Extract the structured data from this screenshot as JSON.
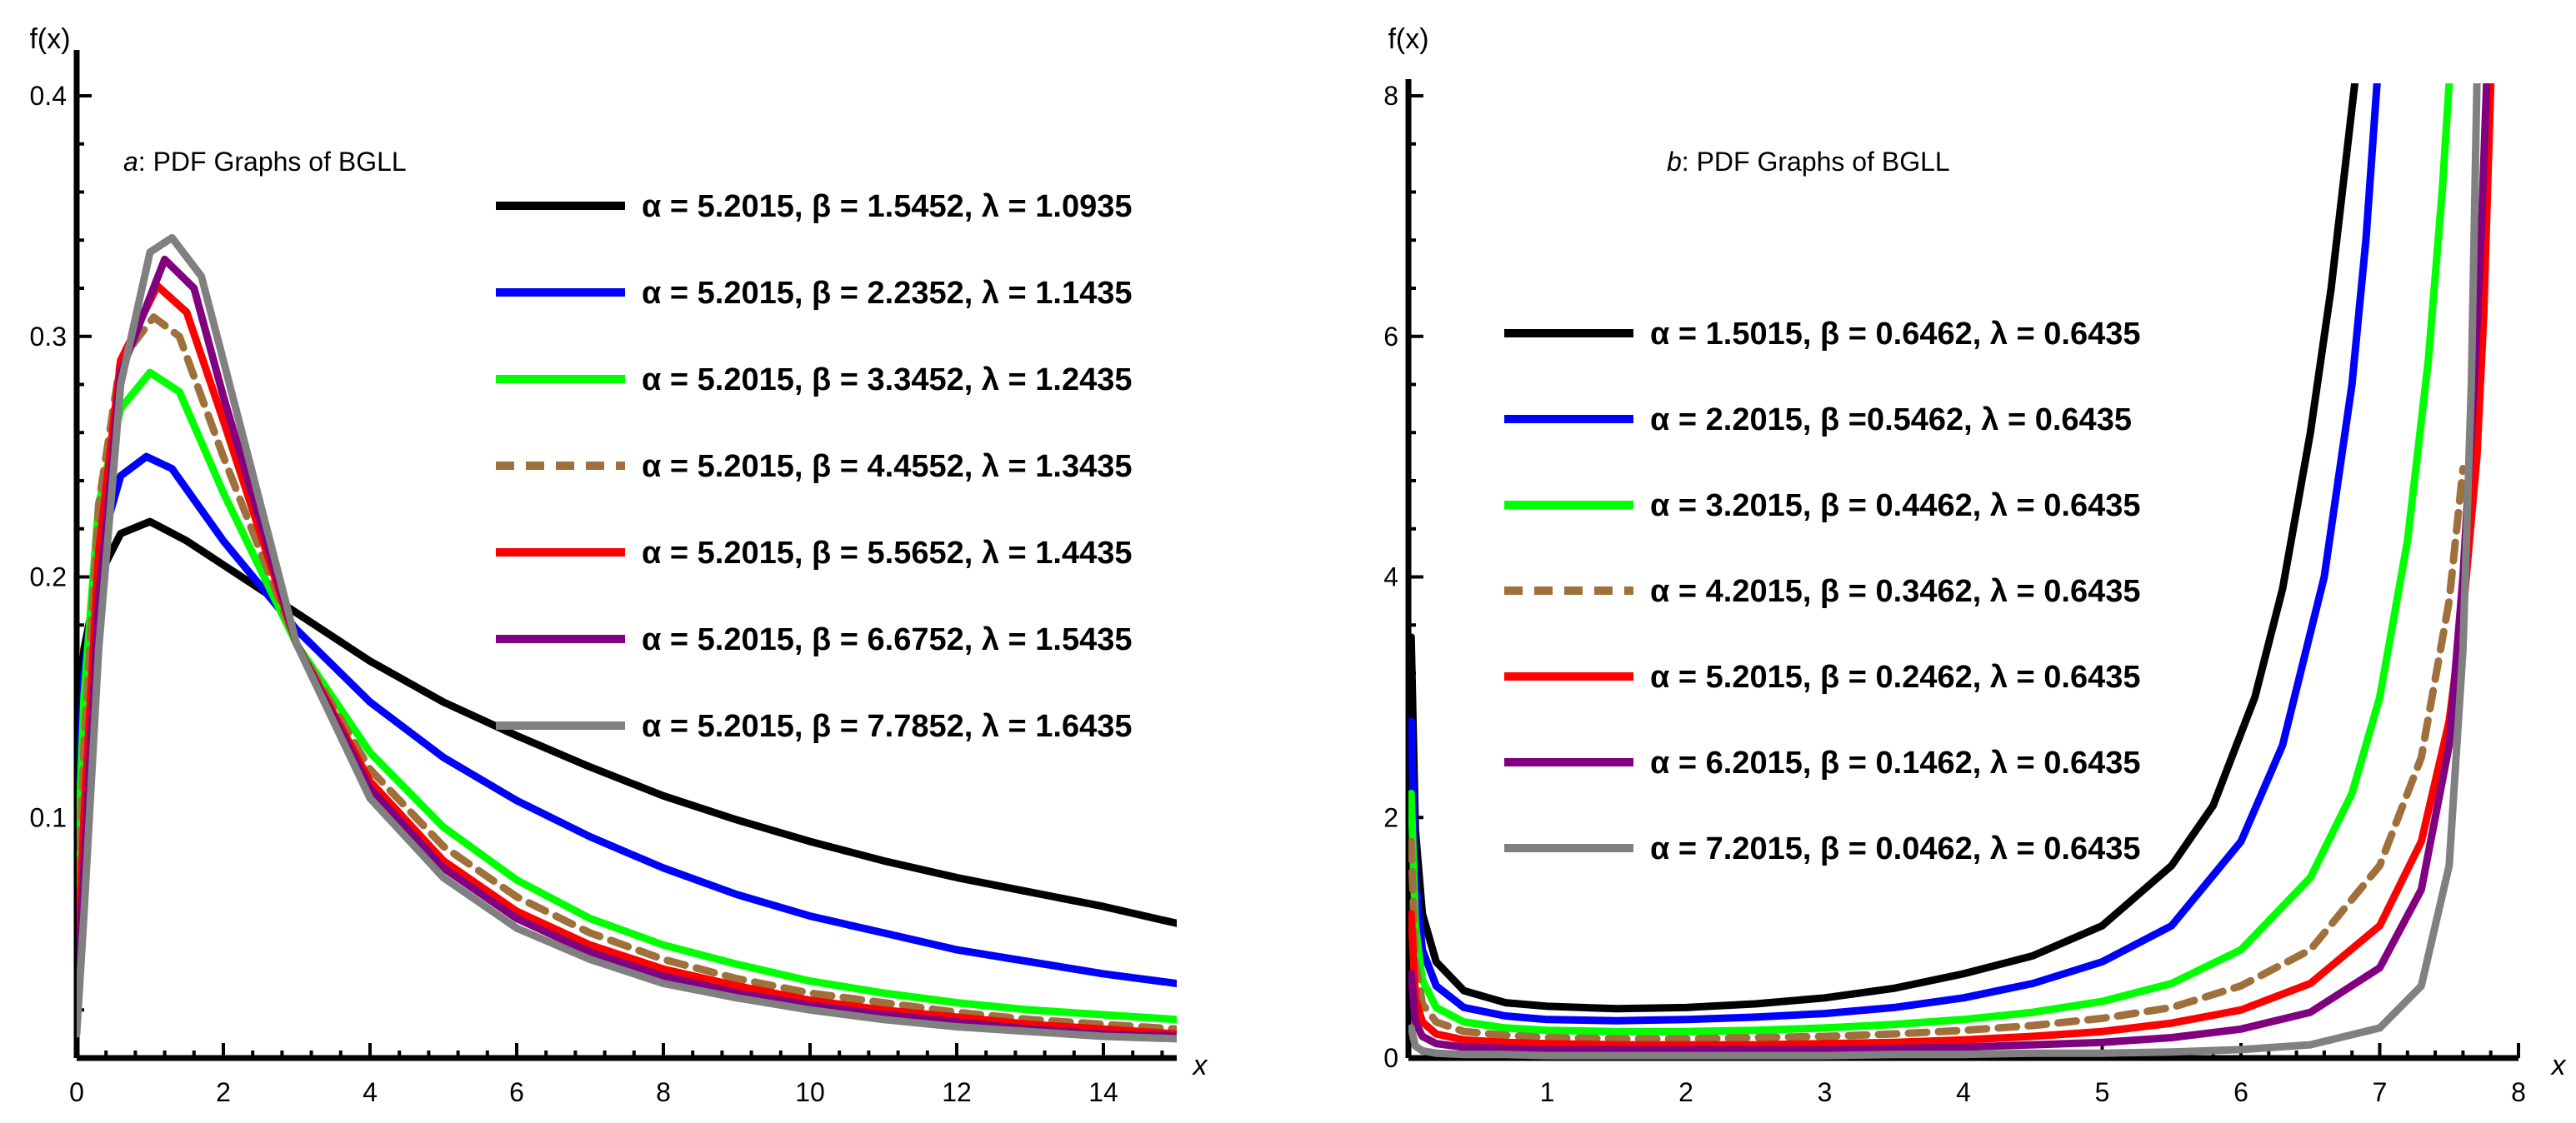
{
  "chart_data": [
    {
      "type": "line",
      "title_prefix": "a",
      "title_text": ": PDF Graphs of BGLL",
      "xlabel": "x",
      "ylabel": "f(x)",
      "xlim": [
        0,
        15
      ],
      "ylim": [
        0,
        0.4
      ],
      "x_ticks": [
        0,
        2,
        4,
        6,
        8,
        10,
        12,
        14
      ],
      "y_ticks": [
        0.1,
        0.2,
        0.3,
        0.4
      ],
      "y_tick_labels": [
        "0.1",
        "0.2",
        "0.3",
        "0.4"
      ],
      "legend_position": "top-right",
      "series": [
        {
          "name": "α = 5.2015, β = 1.5452, λ = 1.0935",
          "color": "#000000",
          "dash": "solid",
          "x": [
            0,
            0.1,
            0.3,
            0.6,
            1.0,
            1.5,
            2,
            3,
            4,
            5,
            6,
            7,
            8,
            9,
            10,
            11,
            12,
            13,
            14,
            15
          ],
          "y": [
            0.13,
            0.17,
            0.2,
            0.218,
            0.223,
            0.215,
            0.205,
            0.185,
            0.165,
            0.148,
            0.134,
            0.121,
            0.109,
            0.099,
            0.09,
            0.082,
            0.075,
            0.069,
            0.063,
            0.056
          ]
        },
        {
          "name": "α = 5.2015, β = 2.2352, λ = 1.1435",
          "color": "#0000ff",
          "dash": "solid",
          "x": [
            0,
            0.1,
            0.3,
            0.6,
            0.95,
            1.3,
            2,
            3,
            4,
            5,
            6,
            7,
            8,
            9,
            10,
            11,
            12,
            13,
            14,
            15
          ],
          "y": [
            0.1,
            0.16,
            0.21,
            0.242,
            0.25,
            0.245,
            0.215,
            0.178,
            0.148,
            0.125,
            0.107,
            0.092,
            0.079,
            0.068,
            0.059,
            0.052,
            0.045,
            0.04,
            0.035,
            0.031
          ]
        },
        {
          "name": "α = 5.2015, β = 3.3452, λ = 1.2435",
          "color": "#00ff00",
          "dash": "solid",
          "x": [
            0,
            0.1,
            0.3,
            0.6,
            1.0,
            1.4,
            2,
            3,
            4,
            5,
            6,
            7,
            8,
            9,
            10,
            11,
            12,
            13,
            14,
            15
          ],
          "y": [
            0.07,
            0.15,
            0.23,
            0.27,
            0.285,
            0.277,
            0.235,
            0.172,
            0.127,
            0.096,
            0.074,
            0.058,
            0.047,
            0.039,
            0.032,
            0.027,
            0.023,
            0.02,
            0.018,
            0.016
          ]
        },
        {
          "name": "α = 5.2015, β = 4.4552, λ = 1.3435",
          "color": "#a0703c",
          "dash": "dashed",
          "x": [
            0,
            0.1,
            0.3,
            0.6,
            1.05,
            1.4,
            2,
            3,
            4,
            5,
            6,
            7,
            8,
            9,
            10,
            11,
            12,
            13,
            14,
            15
          ],
          "y": [
            0.05,
            0.13,
            0.23,
            0.29,
            0.308,
            0.3,
            0.25,
            0.172,
            0.12,
            0.088,
            0.067,
            0.052,
            0.041,
            0.033,
            0.027,
            0.023,
            0.019,
            0.016,
            0.014,
            0.012
          ]
        },
        {
          "name": "α = 5.2015, β = 5.5652, λ = 1.4435",
          "color": "#ff0000",
          "dash": "solid",
          "x": [
            0,
            0.1,
            0.3,
            0.6,
            1.1,
            1.5,
            2,
            3,
            4,
            5,
            6,
            7,
            8,
            9,
            10,
            11,
            12,
            13,
            14,
            15
          ],
          "y": [
            0.03,
            0.1,
            0.21,
            0.29,
            0.321,
            0.31,
            0.265,
            0.172,
            0.115,
            0.082,
            0.061,
            0.047,
            0.037,
            0.03,
            0.024,
            0.02,
            0.017,
            0.014,
            0.012,
            0.01
          ]
        },
        {
          "name": "α = 5.2015, β = 6.6752, λ = 1.5435",
          "color": "#800080",
          "dash": "solid",
          "x": [
            0,
            0.1,
            0.3,
            0.6,
            1.2,
            1.6,
            2,
            3,
            4,
            5,
            6,
            7,
            8,
            9,
            10,
            11,
            12,
            13,
            14,
            15
          ],
          "y": [
            0.02,
            0.08,
            0.19,
            0.285,
            0.332,
            0.32,
            0.275,
            0.172,
            0.112,
            0.079,
            0.058,
            0.044,
            0.034,
            0.027,
            0.022,
            0.018,
            0.015,
            0.012,
            0.01,
            0.009
          ]
        },
        {
          "name": "α = 5.2015, β = 7.7852, λ = 1.6435",
          "color": "#808080",
          "dash": "solid",
          "x": [
            0,
            0.1,
            0.3,
            0.6,
            1.0,
            1.3,
            1.7,
            2,
            3,
            4,
            5,
            6,
            7,
            8,
            9,
            10,
            11,
            12,
            13,
            14,
            15
          ],
          "y": [
            0.01,
            0.06,
            0.17,
            0.28,
            0.335,
            0.341,
            0.325,
            0.29,
            0.172,
            0.108,
            0.075,
            0.054,
            0.041,
            0.031,
            0.025,
            0.02,
            0.016,
            0.013,
            0.011,
            0.009,
            0.008
          ]
        }
      ]
    },
    {
      "type": "line",
      "title_prefix": "b",
      "title_text": ": PDF Graphs of BGLL",
      "xlabel": "x",
      "ylabel": "f(x)",
      "xlim": [
        0,
        8
      ],
      "ylim": [
        0,
        8
      ],
      "x_ticks": [
        1,
        2,
        3,
        4,
        5,
        6,
        7,
        8
      ],
      "y_ticks": [
        0,
        2,
        4,
        6,
        8
      ],
      "y_tick_labels": [
        "0",
        "2",
        "4",
        "6",
        "8"
      ],
      "legend_position": "top-left",
      "series": [
        {
          "name": "α = 1.5015, β = 0.6462, λ = 0.6435",
          "color": "#000000",
          "dash": "solid",
          "x": [
            0.02,
            0.05,
            0.1,
            0.2,
            0.4,
            0.7,
            1,
            1.5,
            2,
            2.5,
            3,
            3.5,
            4,
            4.5,
            5,
            5.5,
            5.8,
            6.1,
            6.3,
            6.5,
            6.65,
            6.75,
            6.82
          ],
          "y": [
            3.5,
            1.9,
            1.2,
            0.8,
            0.56,
            0.46,
            0.43,
            0.41,
            0.42,
            0.45,
            0.5,
            0.58,
            0.7,
            0.85,
            1.1,
            1.6,
            2.1,
            3.0,
            3.9,
            5.2,
            6.4,
            7.4,
            8.1
          ]
        },
        {
          "name": "α = 2.2015, β =0.5462, λ = 0.6435",
          "color": "#0000ff",
          "dash": "solid",
          "x": [
            0.02,
            0.05,
            0.1,
            0.2,
            0.4,
            0.7,
            1,
            1.5,
            2,
            2.5,
            3,
            3.5,
            4,
            4.5,
            5,
            5.5,
            6,
            6.3,
            6.6,
            6.8,
            6.9,
            6.98
          ],
          "y": [
            2.8,
            1.5,
            0.9,
            0.6,
            0.42,
            0.35,
            0.32,
            0.31,
            0.32,
            0.34,
            0.37,
            0.42,
            0.5,
            0.62,
            0.8,
            1.1,
            1.8,
            2.6,
            4.0,
            5.6,
            6.8,
            8.1
          ]
        },
        {
          "name": "α = 3.2015, β = 0.4462, λ = 0.6435",
          "color": "#00ff00",
          "dash": "solid",
          "x": [
            0.02,
            0.05,
            0.1,
            0.2,
            0.4,
            0.7,
            1,
            1.5,
            2,
            2.5,
            3,
            3.5,
            4,
            4.5,
            5,
            5.5,
            6,
            6.5,
            6.8,
            7,
            7.2,
            7.35,
            7.45,
            7.5
          ],
          "y": [
            2.2,
            1.1,
            0.65,
            0.42,
            0.3,
            0.25,
            0.23,
            0.22,
            0.22,
            0.23,
            0.25,
            0.28,
            0.32,
            0.38,
            0.47,
            0.62,
            0.9,
            1.5,
            2.2,
            3.0,
            4.3,
            5.8,
            7.2,
            8.1
          ]
        },
        {
          "name": "α = 4.2015, β = 0.3462, λ = 0.6435",
          "color": "#a0703c",
          "dash": "dashed",
          "x": [
            0.02,
            0.05,
            0.1,
            0.2,
            0.4,
            0.7,
            1,
            1.5,
            2,
            2.5,
            3,
            3.5,
            4,
            4.5,
            5,
            5.5,
            6,
            6.5,
            7,
            7.3,
            7.5,
            7.6
          ],
          "y": [
            1.8,
            0.8,
            0.45,
            0.3,
            0.22,
            0.19,
            0.17,
            0.16,
            0.16,
            0.17,
            0.18,
            0.2,
            0.23,
            0.27,
            0.33,
            0.42,
            0.6,
            0.9,
            1.6,
            2.5,
            3.8,
            4.9
          ]
        },
        {
          "name": "α = 5.2015, β = 0.2462, λ = 0.6435",
          "color": "#ff0000",
          "dash": "solid",
          "x": [
            0.02,
            0.05,
            0.1,
            0.2,
            0.4,
            0.7,
            1,
            1.5,
            2,
            2.5,
            3,
            3.5,
            4,
            4.5,
            5,
            5.5,
            6,
            6.5,
            7,
            7.3,
            7.5,
            7.6,
            7.7,
            7.75,
            7.8
          ],
          "y": [
            1.2,
            0.5,
            0.3,
            0.2,
            0.15,
            0.13,
            0.12,
            0.11,
            0.11,
            0.11,
            0.12,
            0.13,
            0.15,
            0.18,
            0.22,
            0.29,
            0.4,
            0.62,
            1.1,
            1.8,
            2.8,
            3.7,
            5.0,
            6.2,
            8.1
          ]
        },
        {
          "name": "α = 6.2015, β = 0.1462, λ = 0.6435",
          "color": "#800080",
          "dash": "solid",
          "x": [
            0.02,
            0.05,
            0.1,
            0.2,
            0.4,
            0.7,
            1,
            1.5,
            2,
            2.5,
            3,
            3.5,
            4,
            4.5,
            5,
            5.5,
            6,
            6.5,
            7,
            7.3,
            7.5,
            7.6,
            7.68,
            7.73,
            7.77
          ],
          "y": [
            0.7,
            0.3,
            0.18,
            0.12,
            0.09,
            0.08,
            0.07,
            0.07,
            0.07,
            0.07,
            0.07,
            0.08,
            0.09,
            0.11,
            0.13,
            0.17,
            0.24,
            0.38,
            0.75,
            1.4,
            2.6,
            4.0,
            5.6,
            6.8,
            8.1
          ]
        },
        {
          "name": "α = 7.2015, β = 0.0462, λ = 0.6435",
          "color": "#808080",
          "dash": "solid",
          "x": [
            0.02,
            0.05,
            0.1,
            0.2,
            0.4,
            0.7,
            1,
            1.5,
            2,
            2.5,
            3,
            3.5,
            4,
            4.5,
            5,
            5.5,
            6,
            6.5,
            7,
            7.3,
            7.5,
            7.6,
            7.66,
            7.7
          ],
          "y": [
            0.25,
            0.1,
            0.06,
            0.04,
            0.03,
            0.03,
            0.02,
            0.02,
            0.02,
            0.02,
            0.02,
            0.03,
            0.03,
            0.04,
            0.04,
            0.05,
            0.07,
            0.11,
            0.25,
            0.6,
            1.6,
            3.4,
            5.6,
            8.1
          ]
        }
      ]
    }
  ]
}
